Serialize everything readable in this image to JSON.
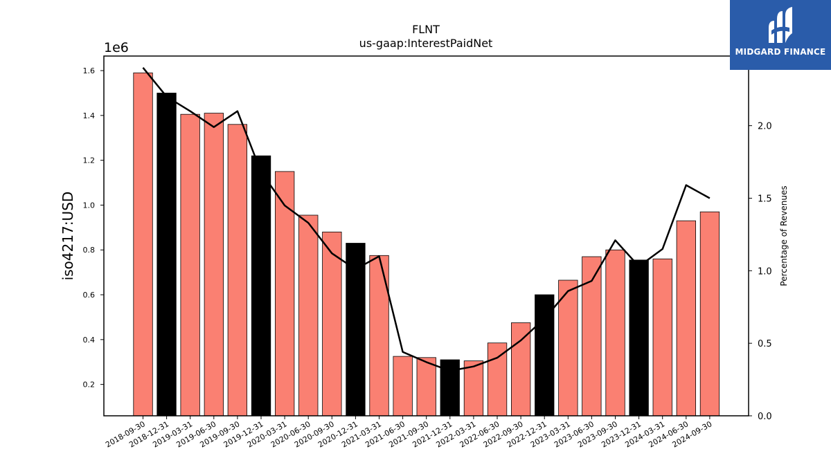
{
  "chart_data": {
    "type": "bar",
    "title": "FLNT",
    "subtitle": "us-gaap:InterestPaidNet",
    "ylabel": "iso4217:USD",
    "y2label": "Percentage of Revenues",
    "y_offset_label": "1e6",
    "ylim": [
      0.06,
      1.665
    ],
    "y2lim": [
      0,
      2.48
    ],
    "yticks": [
      0.2,
      0.4,
      0.6,
      0.8,
      1.0,
      1.2,
      1.4,
      1.6
    ],
    "y2ticks": [
      0.0,
      0.5,
      1.0,
      1.5,
      2.0
    ],
    "categories": [
      "2018-09-30",
      "2018-12-31",
      "2019-03-31",
      "2019-06-30",
      "2019-09-30",
      "2019-12-31",
      "2020-03-31",
      "2020-06-30",
      "2020-09-30",
      "2020-12-31",
      "2021-03-31",
      "2021-06-30",
      "2021-09-30",
      "2021-12-31",
      "2022-03-31",
      "2022-06-30",
      "2022-09-30",
      "2022-12-31",
      "2023-03-31",
      "2023-06-30",
      "2023-09-30",
      "2023-12-31",
      "2024-03-31",
      "2024-06-30",
      "2024-09-30"
    ],
    "series": [
      {
        "type": "bar",
        "values": [
          1.59,
          1.5,
          1.405,
          1.41,
          1.36,
          1.22,
          1.15,
          0.955,
          0.88,
          0.83,
          0.775,
          0.325,
          0.32,
          0.31,
          0.305,
          0.385,
          0.475,
          0.6,
          0.665,
          0.77,
          0.8,
          0.755,
          0.76,
          0.93,
          0.97
        ],
        "highlight": [
          false,
          true,
          false,
          false,
          false,
          true,
          false,
          false,
          false,
          true,
          false,
          false,
          false,
          true,
          false,
          false,
          false,
          true,
          false,
          false,
          false,
          true,
          false,
          false,
          false
        ],
        "color": "#fa8072",
        "highlight_color": "#000000"
      },
      {
        "type": "line",
        "axis": "y2",
        "values": [
          2.4,
          2.2,
          2.1,
          1.99,
          2.1,
          1.68,
          1.45,
          1.33,
          1.12,
          1.01,
          1.1,
          0.44,
          0.37,
          0.31,
          0.34,
          0.4,
          0.52,
          0.67,
          0.86,
          0.93,
          1.21,
          1.03,
          1.15,
          1.59,
          1.5
        ],
        "color": "#000000"
      }
    ],
    "grid": false
  },
  "logo": {
    "text": "MIDGARD FINANCE",
    "background": "#2a5caa"
  }
}
